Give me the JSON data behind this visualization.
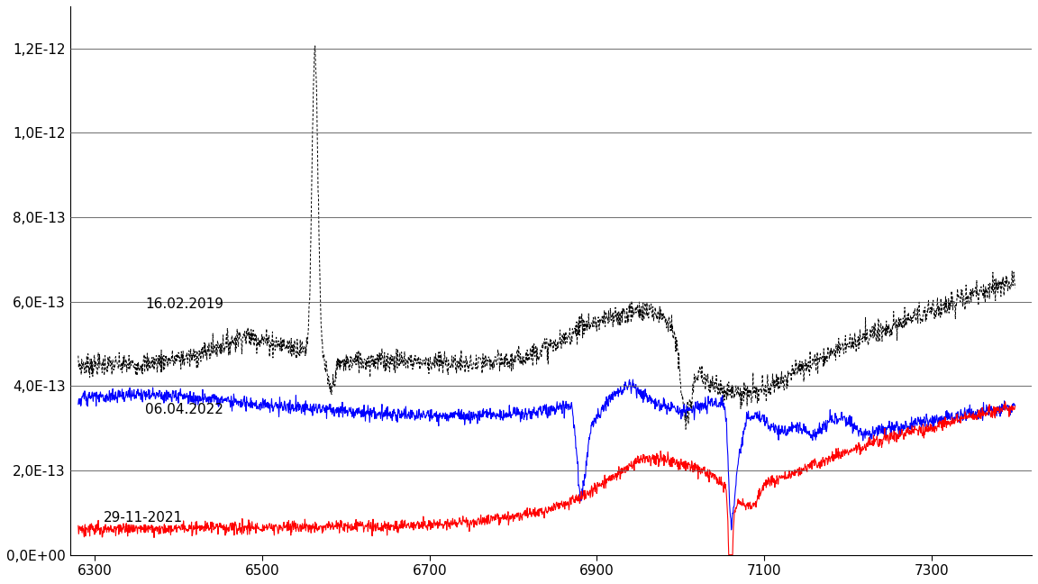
{
  "xlim": [
    6270,
    7420
  ],
  "ylim": [
    0,
    1.3e-12
  ],
  "yticks": [
    0,
    2e-13,
    4e-13,
    6e-13,
    8e-13,
    1e-12,
    1.2e-12
  ],
  "ytick_labels": [
    "0,0E+00",
    "2,0E-13",
    "4,0E-13",
    "6,0E-13",
    "8,0E-13",
    "1,0E-12",
    "1,2E-12"
  ],
  "xticks": [
    6300,
    6500,
    6700,
    6900,
    7100,
    7300
  ],
  "label_black": "16.02.2019",
  "label_blue": "06.04.2022",
  "label_red": "29-11-2021",
  "color_black": "#000000",
  "color_blue": "#0000ff",
  "color_red": "#ff0000",
  "bg_color": "#ffffff"
}
